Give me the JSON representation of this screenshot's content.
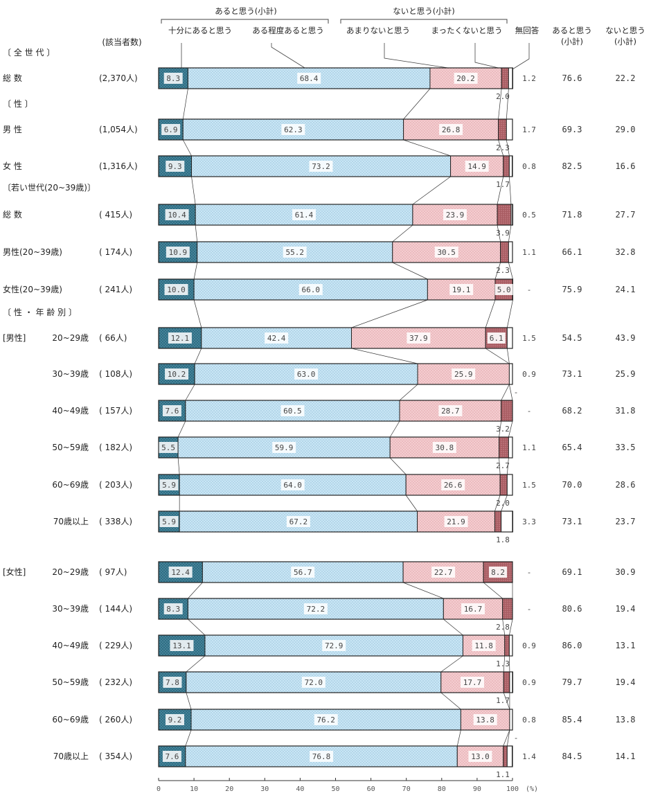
{
  "chart_data": {
    "type": "bar",
    "stacked": true,
    "orientation": "horizontal",
    "xlim": [
      0,
      100
    ],
    "x_ticks": [
      "0",
      "10",
      "20",
      "30",
      "40",
      "50",
      "60",
      "70",
      "80",
      "90",
      "100"
    ],
    "x_unit": "(%)",
    "header": {
      "group_aru": "あると思う(小計)",
      "group_nai": "ないと思う(小計)",
      "count_label": "(該当者数)",
      "sub_aru_line1": "あると思う",
      "sub_aru_line2": "(小計)",
      "sub_nai_line1": "ないと思う",
      "sub_nai_line2": "(小計)"
    },
    "series": [
      {
        "name": "十分にあると思う",
        "color": "#2f6e84"
      },
      {
        "name": "ある程度あると思う",
        "color": "#b8dcef"
      },
      {
        "name": "あまりないと思う",
        "color": "#f2c3c6"
      },
      {
        "name": "まったくないと思う",
        "color": "#a85c62"
      },
      {
        "name": "無回答",
        "color": "#ffffff"
      }
    ],
    "sections": [
      {
        "label": "〔 全 世 代 〕",
        "y": 76
      },
      {
        "label": "〔 性 〕",
        "y": 150
      },
      {
        "label": "〔若い世代(20~39歳)〕",
        "y": 271
      },
      {
        "label": "〔 性 ・ 年 齢 別 〕",
        "y": 451
      }
    ],
    "rows": [
      {
        "group": "",
        "label": "総 数",
        "n": "(2,370人)",
        "values": [
          8.3,
          68.4,
          20.2,
          2.0,
          1.2
        ],
        "texts": [
          "8.3",
          "68.4",
          "20.2",
          "2.0",
          "1.2"
        ],
        "aru": "76.6",
        "nai": "22.2"
      },
      {
        "group": "",
        "label": "男 性",
        "n": "(1,054人)",
        "values": [
          6.9,
          62.3,
          26.8,
          2.3,
          1.7
        ],
        "texts": [
          "6.9",
          "62.3",
          "26.8",
          "2.3",
          "1.7"
        ],
        "aru": "69.3",
        "nai": "29.0"
      },
      {
        "group": "",
        "label": "女 性",
        "n": "(1,316人)",
        "values": [
          9.3,
          73.2,
          14.9,
          1.7,
          0.8
        ],
        "texts": [
          "9.3",
          "73.2",
          "14.9",
          "1.7",
          "0.8"
        ],
        "aru": "82.5",
        "nai": "16.6"
      },
      {
        "group": "",
        "label": "総 数",
        "n": "( 415人)",
        "values": [
          10.4,
          61.4,
          23.9,
          3.9,
          0.5
        ],
        "texts": [
          "10.4",
          "61.4",
          "23.9",
          "3.9",
          "0.5"
        ],
        "aru": "71.8",
        "nai": "27.7"
      },
      {
        "group": "",
        "label": "男性(20~39歳)",
        "n": "( 174人)",
        "values": [
          10.9,
          55.2,
          30.5,
          2.3,
          1.1
        ],
        "texts": [
          "10.9",
          "55.2",
          "30.5",
          "2.3",
          "1.1"
        ],
        "aru": "66.1",
        "nai": "32.8"
      },
      {
        "group": "",
        "label": "女性(20~39歳)",
        "n": "( 241人)",
        "values": [
          10.0,
          66.0,
          19.1,
          5.0,
          0
        ],
        "texts": [
          "10.0",
          "66.0",
          "19.1",
          "5.0",
          "-"
        ],
        "aru": "75.9",
        "nai": "24.1"
      },
      {
        "group": "[男性]",
        "label": "20~29歳",
        "n": "( 66人)",
        "values": [
          12.1,
          42.4,
          37.9,
          6.1,
          1.5
        ],
        "texts": [
          "12.1",
          "42.4",
          "37.9",
          "6.1",
          "1.5"
        ],
        "aru": "54.5",
        "nai": "43.9"
      },
      {
        "group": "",
        "label": "30~39歳",
        "n": "( 108人)",
        "values": [
          10.2,
          63.0,
          25.9,
          0,
          0.9
        ],
        "texts": [
          "10.2",
          "63.0",
          "25.9",
          "-",
          "0.9"
        ],
        "aru": "73.1",
        "nai": "25.9"
      },
      {
        "group": "",
        "label": "40~49歳",
        "n": "( 157人)",
        "values": [
          7.6,
          60.5,
          28.7,
          3.2,
          0
        ],
        "texts": [
          "7.6",
          "60.5",
          "28.7",
          "3.2",
          "-"
        ],
        "aru": "68.2",
        "nai": "31.8"
      },
      {
        "group": "",
        "label": "50~59歳",
        "n": "( 182人)",
        "values": [
          5.5,
          59.9,
          30.8,
          2.7,
          1.1
        ],
        "texts": [
          "5.5",
          "59.9",
          "30.8",
          "2.7",
          "1.1"
        ],
        "aru": "65.4",
        "nai": "33.5"
      },
      {
        "group": "",
        "label": "60~69歳",
        "n": "( 203人)",
        "values": [
          5.9,
          64.0,
          26.6,
          2.0,
          1.5
        ],
        "texts": [
          "5.9",
          "64.0",
          "26.6",
          "2.0",
          "1.5"
        ],
        "aru": "70.0",
        "nai": "28.6"
      },
      {
        "group": "",
        "label": "70歳以上",
        "n": "( 338人)",
        "values": [
          5.9,
          67.2,
          21.9,
          1.8,
          3.3
        ],
        "texts": [
          "5.9",
          "67.2",
          "21.9",
          "1.8",
          "3.3"
        ],
        "aru": "73.1",
        "nai": "23.7"
      },
      {
        "group": "[女性]",
        "label": "20~29歳",
        "n": "( 97人)",
        "values": [
          12.4,
          56.7,
          22.7,
          8.2,
          0
        ],
        "texts": [
          "12.4",
          "56.7",
          "22.7",
          "8.2",
          "-"
        ],
        "aru": "69.1",
        "nai": "30.9"
      },
      {
        "group": "",
        "label": "30~39歳",
        "n": "( 144人)",
        "values": [
          8.3,
          72.2,
          16.7,
          2.8,
          0
        ],
        "texts": [
          "8.3",
          "72.2",
          "16.7",
          "2.8",
          "-"
        ],
        "aru": "80.6",
        "nai": "19.4"
      },
      {
        "group": "",
        "label": "40~49歳",
        "n": "( 229人)",
        "values": [
          13.1,
          72.9,
          11.8,
          1.3,
          0.9
        ],
        "texts": [
          "13.1",
          "72.9",
          "11.8",
          "1.3",
          "0.9"
        ],
        "aru": "86.0",
        "nai": "13.1"
      },
      {
        "group": "",
        "label": "50~59歳",
        "n": "( 232人)",
        "values": [
          7.8,
          72.0,
          17.7,
          1.7,
          0.9
        ],
        "texts": [
          "7.8",
          "72.0",
          "17.7",
          "1.7",
          "0.9"
        ],
        "aru": "79.7",
        "nai": "19.4"
      },
      {
        "group": "",
        "label": "60~69歳",
        "n": "( 260人)",
        "values": [
          9.2,
          76.2,
          13.8,
          0,
          0.8
        ],
        "texts": [
          "9.2",
          "76.2",
          "13.8",
          "-",
          "0.8"
        ],
        "aru": "85.4",
        "nai": "13.8"
      },
      {
        "group": "",
        "label": "70歳以上",
        "n": "( 354人)",
        "values": [
          7.6,
          76.8,
          13.0,
          1.1,
          1.4
        ],
        "texts": [
          "7.6",
          "76.8",
          "13.0",
          "1.1",
          "1.4"
        ],
        "aru": "84.5",
        "nai": "14.1"
      }
    ]
  }
}
